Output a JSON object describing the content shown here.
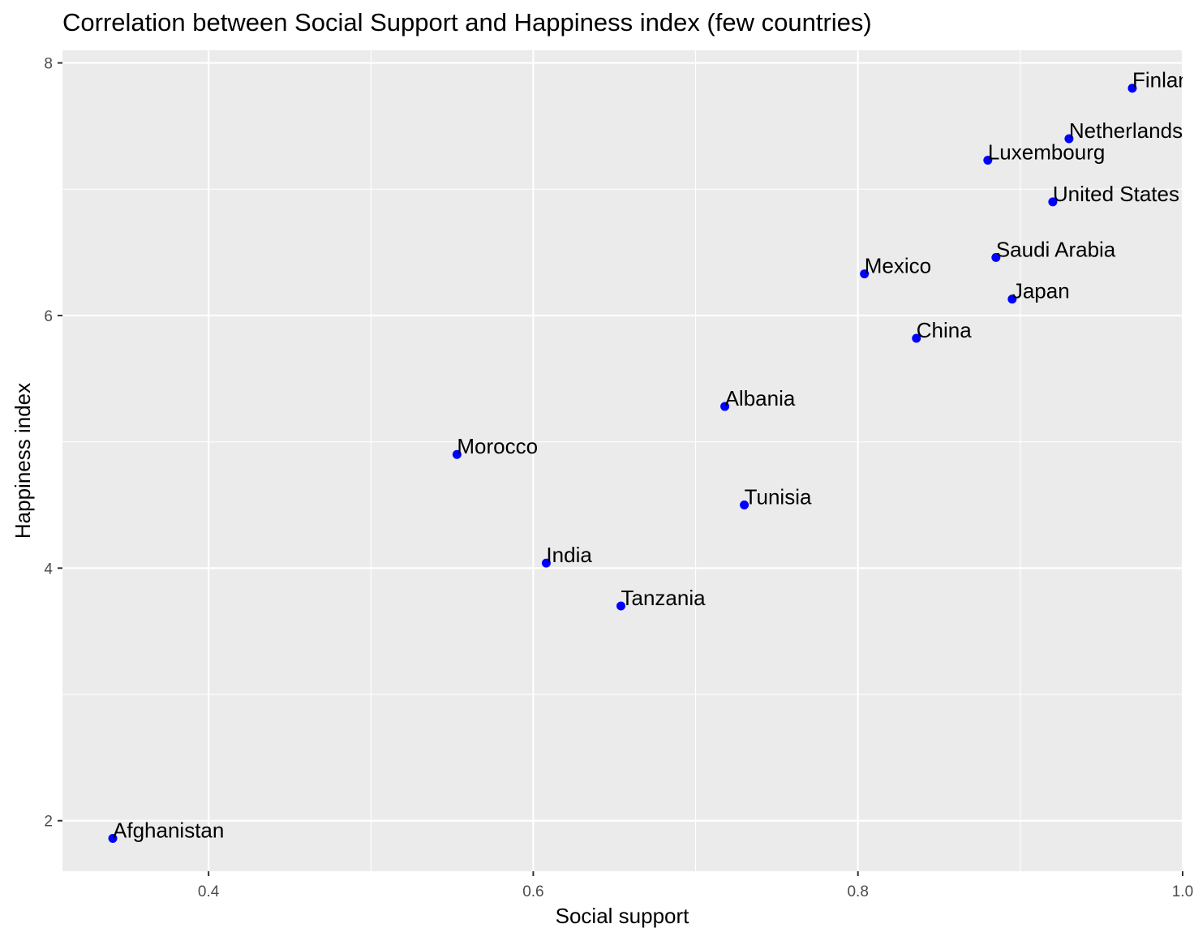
{
  "chart_data": {
    "type": "scatter",
    "title": "Correlation between Social Support and Happiness index (few countries)",
    "xlabel": "Social support",
    "ylabel": "Happiness index",
    "xlim": [
      0.31,
      1.0
    ],
    "ylim": [
      1.6,
      8.1
    ],
    "x_ticks": [
      0.4,
      0.6,
      0.8,
      1.0
    ],
    "x_tick_labels": [
      "0.4",
      "0.6",
      "0.8",
      "1.0"
    ],
    "y_ticks": [
      2,
      4,
      6,
      8
    ],
    "y_tick_labels": [
      "2",
      "4",
      "6",
      "8"
    ],
    "x_minor": [
      0.5,
      0.7,
      0.9
    ],
    "y_minor": [
      3,
      5,
      7
    ],
    "grid": true,
    "point_color": "#0000ff",
    "panel_color": "#ebebeb",
    "points": [
      {
        "label": "Finland",
        "x": 0.969,
        "y": 7.8
      },
      {
        "label": "Netherlands",
        "x": 0.93,
        "y": 7.4
      },
      {
        "label": "Luxembourg",
        "x": 0.88,
        "y": 7.23
      },
      {
        "label": "United States",
        "x": 0.92,
        "y": 6.9
      },
      {
        "label": "Saudi Arabia",
        "x": 0.885,
        "y": 6.46
      },
      {
        "label": "Mexico",
        "x": 0.804,
        "y": 6.33
      },
      {
        "label": "Japan",
        "x": 0.895,
        "y": 6.13
      },
      {
        "label": "China",
        "x": 0.836,
        "y": 5.82
      },
      {
        "label": "Albania",
        "x": 0.718,
        "y": 5.28
      },
      {
        "label": "Morocco",
        "x": 0.553,
        "y": 4.9
      },
      {
        "label": "Tunisia",
        "x": 0.73,
        "y": 4.5
      },
      {
        "label": "India",
        "x": 0.608,
        "y": 4.04
      },
      {
        "label": "Tanzania",
        "x": 0.654,
        "y": 3.7
      },
      {
        "label": "Afghanistan",
        "x": 0.341,
        "y": 1.86
      }
    ]
  }
}
